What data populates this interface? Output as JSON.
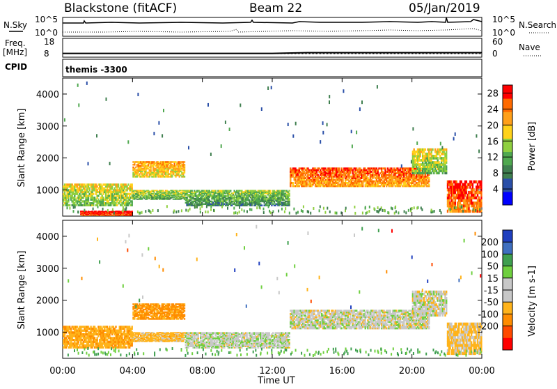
{
  "header": {
    "station": "Blackstone (fitACF)",
    "beam": "Beam 22",
    "date": "05/Jan/2019"
  },
  "noise_panel": {
    "left_label": "N.Sky",
    "right_label": "N.Search",
    "tick_top_left": "10^5",
    "tick_bottom_left": "10^0",
    "tick_top_right": "10^5",
    "tick_bottom_right": "10^0"
  },
  "freq_panel": {
    "left_label_1": "Freq.",
    "left_label_2": "[MHz]",
    "right_label": "Nave",
    "tick_top_left": "18",
    "tick_bottom_left": "8",
    "tick_top_right": "60",
    "tick_bottom_right": "0",
    "freq_mhz": [
      10.0,
      10.0,
      10.0,
      10.0,
      10.0,
      10.0,
      10.0,
      10.4,
      10.4,
      10.4,
      10.4,
      10.4,
      10.4
    ]
  },
  "cpid_panel": {
    "left_label": "CPID",
    "value": "themis -3300"
  },
  "x_axis": {
    "label": "Time UT",
    "ticks": [
      "00:00",
      "04:00",
      "08:00",
      "12:00",
      "16:00",
      "20:00",
      "00:00"
    ]
  },
  "colors": {
    "power_scale": [
      "#0000ff",
      "#2a4fa8",
      "#3f7f4f",
      "#4fa84f",
      "#8fcf3f",
      "#ffd21a",
      "#ffa01a",
      "#ff6a00",
      "#ff0000"
    ],
    "velocity_scale": [
      "#1f3fbf",
      "#3f6fbf",
      "#3f9f4f",
      "#6fcf3f",
      "#c8c8c8",
      "#c8c8c8",
      "#ffb31a",
      "#ff8c00",
      "#ff4a00",
      "#ff0000"
    ]
  },
  "chart_data": [
    {
      "type": "heatmap",
      "title": "Power",
      "ylabel": "Slant Range [km]",
      "xlabel": "",
      "x_unit": "hours UT",
      "xlim": [
        0,
        24
      ],
      "ylim": [
        180,
        4500
      ],
      "yticks": [
        "1000",
        "2000",
        "3000",
        "4000"
      ],
      "colorbar": {
        "label": "Power [dB]",
        "ticks": [
          "4",
          "8",
          "12",
          "16",
          "20",
          "24",
          "28"
        ],
        "range": [
          0,
          30
        ]
      },
      "scatter_bands": [
        {
          "t_start": 0.0,
          "t_end": 4.0,
          "range_low": 500,
          "range_high": 1200,
          "value": 16
        },
        {
          "t_start": 1.0,
          "t_end": 4.0,
          "range_low": 200,
          "range_high": 350,
          "value": 28
        },
        {
          "t_start": 4.0,
          "t_end": 7.0,
          "range_low": 1400,
          "range_high": 1900,
          "value": 20
        },
        {
          "t_start": 4.0,
          "t_end": 7.0,
          "range_low": 700,
          "range_high": 1000,
          "value": 14
        },
        {
          "t_start": 7.0,
          "t_end": 13.0,
          "range_low": 500,
          "range_high": 1000,
          "value": 12
        },
        {
          "t_start": 13.0,
          "t_end": 21.0,
          "range_low": 1100,
          "range_high": 1700,
          "value": 24
        },
        {
          "t_start": 20.0,
          "t_end": 22.0,
          "range_low": 1500,
          "range_high": 2300,
          "value": 16
        },
        {
          "t_start": 22.0,
          "t_end": 24.0,
          "range_low": 300,
          "range_high": 1300,
          "value": 26
        }
      ]
    },
    {
      "type": "heatmap",
      "title": "Velocity",
      "ylabel": "Slant Range [km]",
      "xlabel": "Time UT",
      "x_unit": "hours UT",
      "xlim": [
        0,
        24
      ],
      "ylim": [
        180,
        4500
      ],
      "yticks": [
        "1000",
        "2000",
        "3000",
        "4000"
      ],
      "colorbar": {
        "label": "Velocity [m s-1]",
        "ticks": [
          "200",
          "100",
          "50",
          "15",
          "-15",
          "-50",
          "-100",
          "-200"
        ]
      },
      "scatter_bands": [
        {
          "t_start": 0.0,
          "t_end": 4.0,
          "range_low": 500,
          "range_high": 1200,
          "value": -40
        },
        {
          "t_start": 4.0,
          "t_end": 7.0,
          "range_low": 1400,
          "range_high": 1900,
          "value": -60
        },
        {
          "t_start": 4.0,
          "t_end": 7.0,
          "range_low": 700,
          "range_high": 1000,
          "value": -30
        },
        {
          "t_start": 7.0,
          "t_end": 13.0,
          "range_low": 500,
          "range_high": 1000,
          "value": 5
        },
        {
          "t_start": 13.0,
          "t_end": 21.0,
          "range_low": 1100,
          "range_high": 1700,
          "value": 0
        },
        {
          "t_start": 20.0,
          "t_end": 22.0,
          "range_low": 1500,
          "range_high": 2300,
          "value": 0
        },
        {
          "t_start": 22.0,
          "t_end": 24.0,
          "range_low": 300,
          "range_high": 1300,
          "value": -20
        }
      ]
    }
  ]
}
